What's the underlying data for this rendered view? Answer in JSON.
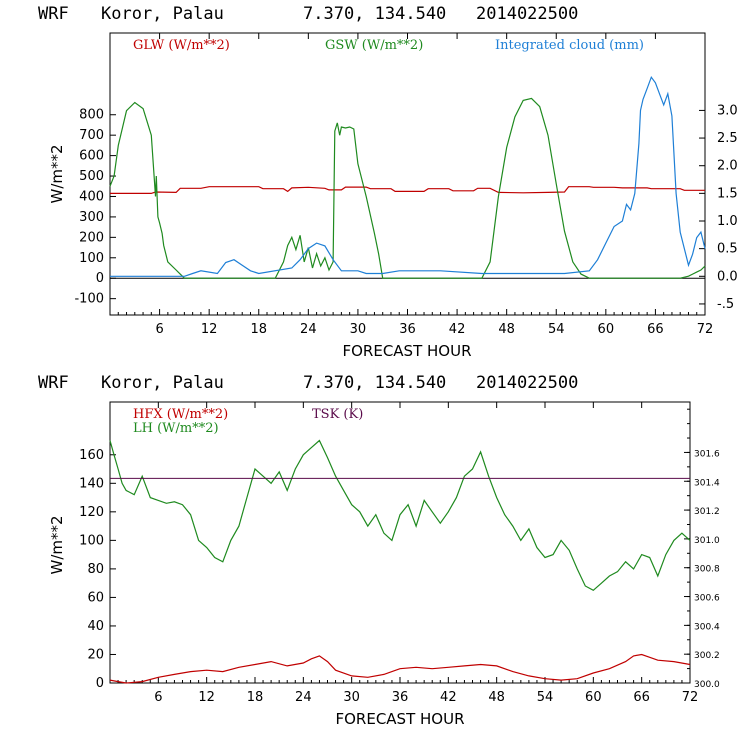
{
  "colors": {
    "red": "#c00000",
    "green": "#1f8a1f",
    "blue": "#1e7fd6",
    "purple": "#5a0a4a"
  },
  "chart_data": [
    {
      "type": "line",
      "header": {
        "model": "WRF",
        "location": "Koror, Palau",
        "coords": "7.370, 134.540",
        "init": "2014022500"
      },
      "xlabel": "FORECAST HOUR",
      "ylabel": "W/m**2",
      "xlim": [
        0,
        72
      ],
      "ylim": [
        -180,
        1200
      ],
      "y2lim": [
        -0.7,
        4.4
      ],
      "xticks": [
        6,
        12,
        18,
        24,
        30,
        36,
        42,
        48,
        54,
        60,
        66,
        72
      ],
      "xtick_labels": [
        "6",
        "12",
        "18",
        "24",
        "30",
        "36",
        "42",
        "48",
        "54",
        "60",
        "66",
        "72"
      ],
      "yticks": [
        -100,
        0,
        100,
        200,
        300,
        400,
        500,
        600,
        700,
        800
      ],
      "ytick_labels": [
        "-100",
        "0",
        "100",
        "200",
        "300",
        "400",
        "500",
        "600",
        "700",
        "800"
      ],
      "y2ticks": [
        -0.5,
        0.0,
        0.5,
        1.0,
        1.5,
        2.0,
        2.5,
        3.0
      ],
      "y2tick_labels": [
        "-.5",
        "0.0",
        "0.5",
        "1.0",
        "1.5",
        "2.0",
        "2.5",
        "3.0"
      ],
      "series": [
        {
          "name": "GLW (W/m**2)",
          "color": "#c00000",
          "axis": "left",
          "x": [
            0,
            5,
            5.5,
            8,
            8.5,
            11,
            12,
            18,
            18.5,
            21,
            21.5,
            22,
            24,
            26,
            26.5,
            28,
            28.5,
            31,
            31.5,
            34,
            34.5,
            38,
            38.5,
            41,
            41.5,
            44,
            44.5,
            46,
            47,
            50,
            53,
            55,
            55.5,
            58,
            58.5,
            61,
            62,
            65,
            65.5,
            69,
            69.5,
            72
          ],
          "values": [
            415,
            415,
            422,
            420,
            440,
            440,
            448,
            448,
            438,
            438,
            425,
            442,
            445,
            440,
            432,
            432,
            446,
            446,
            438,
            438,
            425,
            425,
            438,
            438,
            428,
            428,
            440,
            440,
            420,
            418,
            420,
            422,
            448,
            448,
            445,
            445,
            442,
            442,
            438,
            438,
            430,
            430
          ]
        },
        {
          "name": "GSW (W/m**2)",
          "color": "#1f8a1f",
          "axis": "left",
          "x": [
            0,
            0.5,
            1,
            2,
            3,
            4,
            5,
            5.5,
            5.6,
            5.8,
            6,
            6.3,
            6.5,
            7,
            8,
            8.5,
            9,
            10,
            20,
            21,
            21.5,
            22,
            22.5,
            23,
            23.5,
            24,
            24.5,
            25,
            25.5,
            26,
            26.5,
            27,
            27.2,
            27.5,
            27.8,
            28,
            28.5,
            29,
            29.5,
            30,
            31,
            32,
            32.5,
            33,
            45,
            46,
            47,
            48,
            49,
            50,
            51,
            52,
            53,
            54,
            55,
            56,
            57,
            58,
            69,
            70,
            70.5,
            71,
            71.5,
            72
          ],
          "values": [
            450,
            500,
            650,
            820,
            860,
            830,
            700,
            400,
            500,
            300,
            270,
            220,
            160,
            80,
            40,
            20,
            0,
            0,
            0,
            80,
            160,
            200,
            140,
            210,
            80,
            150,
            50,
            120,
            60,
            100,
            40,
            80,
            720,
            760,
            700,
            740,
            735,
            740,
            730,
            560,
            400,
            220,
            120,
            0,
            0,
            80,
            400,
            640,
            790,
            870,
            880,
            840,
            700,
            460,
            230,
            80,
            20,
            0,
            0,
            10,
            20,
            30,
            40,
            60
          ]
        },
        {
          "name": "Integrated cloud (mm)",
          "color": "#1e7fd6",
          "axis": "right",
          "x": [
            0,
            9,
            10,
            11,
            13,
            14,
            15,
            16,
            17,
            18,
            22,
            23,
            24,
            25,
            26,
            27,
            28,
            30,
            31,
            33,
            35,
            40,
            45,
            50,
            55,
            58,
            59,
            60,
            61,
            62,
            62.5,
            63,
            63.5,
            64,
            64.2,
            64.5,
            65,
            65.5,
            66,
            66.5,
            67,
            67.5,
            68,
            68.5,
            69,
            70,
            70.5,
            71,
            71.5,
            72
          ],
          "values": [
            0,
            0,
            0.05,
            0.1,
            0.05,
            0.25,
            0.3,
            0.2,
            0.1,
            0.05,
            0.15,
            0.3,
            0.5,
            0.6,
            0.55,
            0.3,
            0.1,
            0.1,
            0.05,
            0.05,
            0.1,
            0.1,
            0.05,
            0.05,
            0.05,
            0.1,
            0.3,
            0.6,
            0.9,
            1.0,
            1.3,
            1.2,
            1.5,
            2.4,
            3.0,
            3.2,
            3.4,
            3.6,
            3.5,
            3.3,
            3.1,
            3.3,
            2.9,
            1.5,
            0.8,
            0.2,
            0.4,
            0.7,
            0.8,
            0.5
          ]
        }
      ]
    },
    {
      "type": "line",
      "header": {
        "model": "WRF",
        "location": "Koror, Palau",
        "coords": "7.370, 134.540",
        "init": "2014022500"
      },
      "xlabel": "FORECAST HOUR",
      "ylabel": "W/m**2",
      "xlim": [
        0,
        72
      ],
      "ylim": [
        0,
        197
      ],
      "y2lim": [
        300.0,
        301.95
      ],
      "xticks": [
        6,
        12,
        18,
        24,
        30,
        36,
        42,
        48,
        54,
        60,
        66,
        72
      ],
      "xtick_labels": [
        "6",
        "12",
        "18",
        "24",
        "30",
        "36",
        "42",
        "48",
        "54",
        "60",
        "66",
        "72"
      ],
      "yticks": [
        0,
        20,
        40,
        60,
        80,
        100,
        120,
        140,
        160
      ],
      "ytick_labels": [
        "0",
        "20",
        "40",
        "60",
        "80",
        "100",
        "120",
        "140",
        "160"
      ],
      "y2ticks": [
        300.0,
        300.2,
        300.4,
        300.6,
        300.8,
        301.0,
        301.2,
        301.4,
        301.6
      ],
      "y2tick_labels": [
        "300.0",
        "300.2",
        "300.4",
        "300.6",
        "300.8",
        "301.0",
        "301.2",
        "301.4",
        "301.6"
      ],
      "series": [
        {
          "name": "HFX (W/m**2)",
          "color": "#c00000",
          "axis": "left",
          "x": [
            0,
            1,
            2,
            4,
            6,
            8,
            10,
            12,
            14,
            16,
            18,
            20,
            22,
            24,
            25,
            26,
            27,
            28,
            30,
            32,
            34,
            36,
            38,
            40,
            42,
            44,
            46,
            48,
            50,
            52,
            54,
            56,
            58,
            60,
            62,
            64,
            65,
            66,
            67,
            68,
            70,
            72
          ],
          "values": [
            2,
            1,
            0,
            1,
            4,
            6,
            8,
            9,
            8,
            11,
            13,
            15,
            12,
            14,
            17,
            19,
            15,
            9,
            5,
            4,
            6,
            10,
            11,
            10,
            11,
            12,
            13,
            12,
            8,
            5,
            3,
            2,
            3,
            7,
            10,
            15,
            19,
            20,
            18,
            16,
            15,
            13
          ]
        },
        {
          "name": "LH (W/m**2)",
          "color": "#1f8a1f",
          "axis": "left",
          "x": [
            0,
            0.5,
            1,
            1.5,
            2,
            3,
            4,
            5,
            6,
            7,
            8,
            9,
            10,
            11,
            12,
            13,
            14,
            15,
            16,
            17,
            18,
            19,
            20,
            21,
            22,
            23,
            24,
            25,
            26,
            27,
            28,
            29,
            30,
            31,
            32,
            33,
            34,
            35,
            36,
            37,
            38,
            39,
            40,
            41,
            42,
            43,
            44,
            45,
            46,
            47,
            48,
            49,
            50,
            51,
            52,
            53,
            54,
            55,
            56,
            57,
            58,
            59,
            60,
            61,
            62,
            63,
            64,
            65,
            66,
            67,
            68,
            69,
            70,
            71,
            72
          ],
          "values": [
            170,
            160,
            150,
            140,
            135,
            132,
            145,
            130,
            128,
            126,
            127,
            125,
            118,
            100,
            95,
            88,
            85,
            100,
            110,
            130,
            150,
            145,
            140,
            148,
            135,
            150,
            160,
            165,
            170,
            158,
            145,
            135,
            125,
            120,
            110,
            118,
            105,
            100,
            118,
            125,
            110,
            128,
            120,
            112,
            120,
            130,
            145,
            150,
            162,
            145,
            130,
            118,
            110,
            100,
            108,
            95,
            88,
            90,
            100,
            93,
            80,
            68,
            65,
            70,
            75,
            78,
            85,
            80,
            90,
            88,
            75,
            90,
            100,
            105,
            100
          ]
        },
        {
          "name": "TSK (K)",
          "color": "#5a0a4a",
          "axis": "right",
          "x": [
            0,
            72
          ],
          "values": [
            301.42,
            301.42
          ]
        }
      ]
    }
  ]
}
